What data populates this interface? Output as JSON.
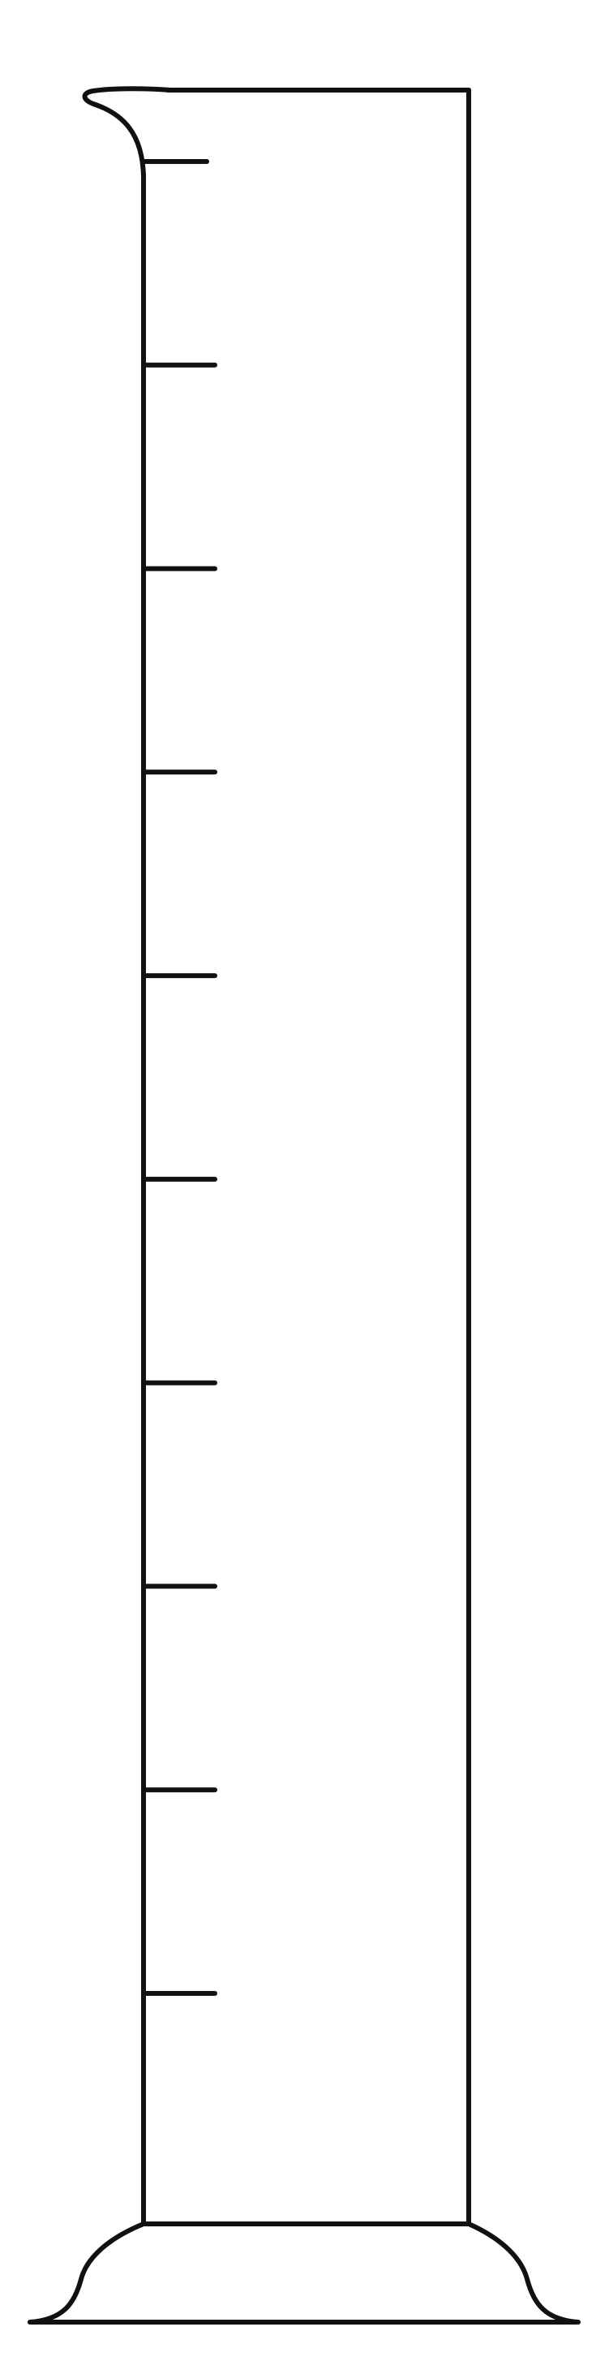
{
  "figure": {
    "object": "graduated-cylinder",
    "graduation_count": 10,
    "stroke_color": "#111111",
    "background_color": "#ffffff"
  }
}
